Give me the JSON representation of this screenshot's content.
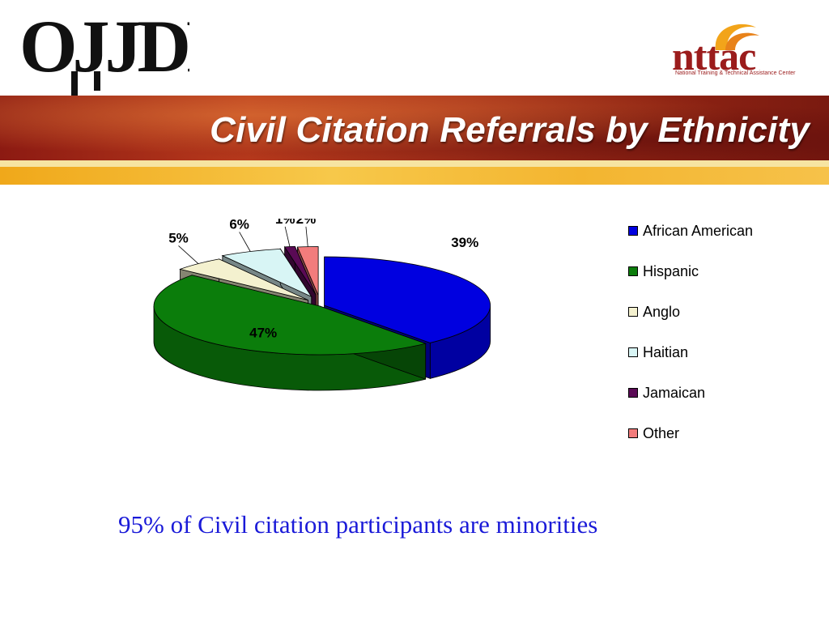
{
  "logos": {
    "left_text": "OJJDP",
    "right_text": "nttac",
    "right_tagline": "National Training & Technical Assistance Center"
  },
  "slide": {
    "title": "Civil Citation Referrals by Ethnicity",
    "footnote": "95% of Civil citation participants are minorities"
  },
  "colors": {
    "title_band": "#a8321a",
    "title_stripe": "#f3b530",
    "footnote_text": "#1a1ad8"
  },
  "chart_data": {
    "type": "pie",
    "style": "3d-exploded",
    "legend_position": "right",
    "categories": [
      "African American",
      "Hispanic",
      "Anglo",
      "Haitian",
      "Jamaican",
      "Other"
    ],
    "values": [
      39,
      47,
      5,
      6,
      1,
      2
    ],
    "labels": [
      "39%",
      "47%",
      "5%",
      "6%",
      "1%",
      "2%"
    ],
    "colors": [
      "#0000e0",
      "#0b7d0b",
      "#f4f1cf",
      "#d8f5f5",
      "#5a0a55",
      "#f27c7c"
    ]
  }
}
